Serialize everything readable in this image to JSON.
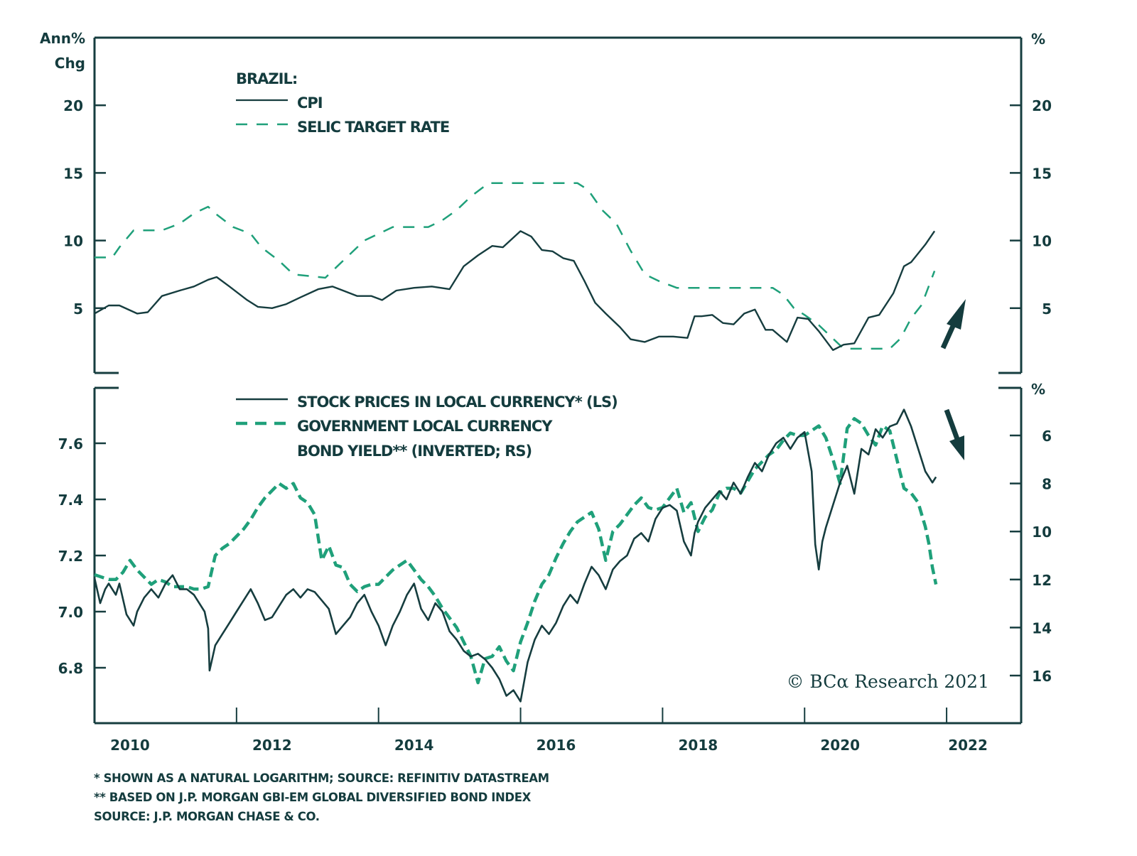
{
  "chart_data": [
    {
      "type": "line",
      "panel": "top",
      "title": "BRAZIL:",
      "ylabel_left": "Ann% Chg",
      "ylabel_right": "%",
      "ylim": [
        0,
        25
      ],
      "yticks": [
        5,
        10,
        15,
        20
      ],
      "ytick_labels_left": [
        "5",
        "10",
        "15",
        "20"
      ],
      "ytick_labels_right": [
        "5",
        "10",
        "15",
        "20"
      ],
      "legend_position": "top-left",
      "annotation": "up-arrow",
      "series": [
        {
          "name": "CPI",
          "style": "solid",
          "color": "#163d3f",
          "x": [
            2010.0,
            2010.2,
            2010.35,
            2010.6,
            2010.75,
            2010.95,
            2011.2,
            2011.4,
            2011.6,
            2011.72,
            2011.9,
            2012.15,
            2012.3,
            2012.5,
            2012.7,
            2012.9,
            2013.15,
            2013.35,
            2013.5,
            2013.7,
            2013.9,
            2014.05,
            2014.25,
            2014.5,
            2014.75,
            2015.0,
            2015.2,
            2015.4,
            2015.6,
            2015.75,
            2016.0,
            2016.15,
            2016.3,
            2016.45,
            2016.6,
            2016.75,
            2016.9,
            2017.05,
            2017.2,
            2017.4,
            2017.55,
            2017.75,
            2017.95,
            2018.15,
            2018.35,
            2018.45,
            2018.55,
            2018.7,
            2018.85,
            2019.0,
            2019.15,
            2019.3,
            2019.45,
            2019.55,
            2019.75,
            2019.9,
            2020.05,
            2020.2,
            2020.4,
            2020.55,
            2020.7,
            2020.9,
            2021.05,
            2021.25,
            2021.4,
            2021.5,
            2021.7,
            2021.83
          ],
          "values": [
            4.6,
            5.2,
            5.2,
            4.6,
            4.7,
            5.9,
            6.3,
            6.6,
            7.1,
            7.3,
            6.6,
            5.6,
            5.1,
            5.0,
            5.3,
            5.8,
            6.4,
            6.6,
            6.3,
            5.9,
            5.9,
            5.6,
            6.3,
            6.5,
            6.6,
            6.4,
            8.1,
            8.9,
            9.6,
            9.5,
            10.7,
            10.3,
            9.3,
            9.2,
            8.7,
            8.5,
            7.0,
            5.4,
            4.6,
            3.6,
            2.7,
            2.5,
            2.9,
            2.9,
            2.8,
            4.4,
            4.4,
            4.5,
            3.9,
            3.8,
            4.6,
            4.9,
            3.4,
            3.4,
            2.5,
            4.3,
            4.2,
            3.3,
            1.9,
            2.3,
            2.4,
            4.3,
            4.5,
            6.1,
            8.1,
            8.4,
            9.7,
            10.7
          ]
        },
        {
          "name": "SELIC TARGET RATE",
          "style": "dashed",
          "color": "#1fa07a",
          "x": [
            2010.0,
            2010.25,
            2010.35,
            2010.55,
            2010.95,
            2011.2,
            2011.4,
            2011.6,
            2011.7,
            2011.95,
            2012.2,
            2012.35,
            2012.6,
            2012.8,
            2013.25,
            2013.4,
            2013.6,
            2013.8,
            2014.0,
            2014.2,
            2014.7,
            2014.9,
            2015.1,
            2015.3,
            2015.55,
            2016.8,
            2016.95,
            2017.15,
            2017.35,
            2017.55,
            2017.75,
            2017.95,
            2018.2,
            2019.55,
            2019.7,
            2019.85,
            2020.0,
            2020.2,
            2020.35,
            2020.55,
            2021.2,
            2021.35,
            2021.5,
            2021.65,
            2021.83
          ],
          "values": [
            8.75,
            8.75,
            9.5,
            10.75,
            10.75,
            11.25,
            12.0,
            12.5,
            12.0,
            11.0,
            10.5,
            9.5,
            8.5,
            7.5,
            7.25,
            8.0,
            9.0,
            10.0,
            10.5,
            11.0,
            11.0,
            11.5,
            12.25,
            13.25,
            14.25,
            14.25,
            13.75,
            12.25,
            11.25,
            9.25,
            7.5,
            7.0,
            6.5,
            6.5,
            6.0,
            5.0,
            4.5,
            3.75,
            3.0,
            2.0,
            2.0,
            2.75,
            4.25,
            5.25,
            7.75
          ]
        }
      ]
    },
    {
      "type": "line",
      "panel": "bottom",
      "ylabel_left": "",
      "ylabel_right": "%",
      "ylim_left": [
        6.62,
        7.82
      ],
      "yticks_left": [
        6.8,
        7.0,
        7.2,
        7.4,
        7.6
      ],
      "ytick_labels_left": [
        "6.8",
        "7.0",
        "7.2",
        "7.4",
        "7.6"
      ],
      "ylim_right_inverted": [
        4.0,
        18.0
      ],
      "yticks_right": [
        6,
        8,
        10,
        12,
        14,
        16
      ],
      "ytick_labels_right": [
        "6",
        "8",
        "10",
        "12",
        "14",
        "16"
      ],
      "legend_position": "top-left",
      "annotation": "down-arrow",
      "series": [
        {
          "name": "STOCK PRICES IN LOCAL CURRENCY* (LS)",
          "axis": "left",
          "style": "solid",
          "color": "#163d3f",
          "x": [
            2010.0,
            2010.08,
            2010.15,
            2010.2,
            2010.3,
            2010.35,
            2010.45,
            2010.55,
            2010.6,
            2010.7,
            2010.8,
            2010.9,
            2011.0,
            2011.1,
            2011.2,
            2011.3,
            2011.4,
            2011.5,
            2011.55,
            2011.6,
            2011.62,
            2011.7,
            2011.8,
            2011.9,
            2012.0,
            2012.1,
            2012.2,
            2012.3,
            2012.4,
            2012.5,
            2012.6,
            2012.7,
            2012.8,
            2012.9,
            2013.0,
            2013.1,
            2013.2,
            2013.3,
            2013.4,
            2013.5,
            2013.6,
            2013.7,
            2013.8,
            2013.9,
            2014.0,
            2014.1,
            2014.2,
            2014.3,
            2014.4,
            2014.5,
            2014.6,
            2014.7,
            2014.8,
            2014.9,
            2015.0,
            2015.1,
            2015.2,
            2015.3,
            2015.4,
            2015.5,
            2015.6,
            2015.7,
            2015.8,
            2015.9,
            2016.0,
            2016.05,
            2016.1,
            2016.2,
            2016.3,
            2016.4,
            2016.5,
            2016.6,
            2016.7,
            2016.8,
            2016.9,
            2017.0,
            2017.1,
            2017.2,
            2017.3,
            2017.4,
            2017.5,
            2017.6,
            2017.7,
            2017.8,
            2017.9,
            2018.0,
            2018.1,
            2018.2,
            2018.3,
            2018.4,
            2018.45,
            2018.5,
            2018.6,
            2018.7,
            2018.8,
            2018.9,
            2019.0,
            2019.1,
            2019.2,
            2019.3,
            2019.4,
            2019.5,
            2019.6,
            2019.7,
            2019.8,
            2019.9,
            2020.0,
            2020.1,
            2020.15,
            2020.2,
            2020.25,
            2020.3,
            2020.4,
            2020.5,
            2020.6,
            2020.7,
            2020.8,
            2020.9,
            2021.0,
            2021.1,
            2021.2,
            2021.3,
            2021.4,
            2021.5,
            2021.6,
            2021.7,
            2021.8,
            2021.85
          ],
          "values": [
            7.12,
            7.03,
            7.08,
            7.1,
            7.06,
            7.1,
            6.99,
            6.95,
            7.0,
            7.05,
            7.08,
            7.05,
            7.1,
            7.13,
            7.08,
            7.08,
            7.06,
            7.02,
            7.0,
            6.94,
            6.79,
            6.88,
            6.92,
            6.96,
            7.0,
            7.04,
            7.08,
            7.03,
            6.97,
            6.98,
            7.02,
            7.06,
            7.08,
            7.05,
            7.08,
            7.07,
            7.04,
            7.01,
            6.92,
            6.95,
            6.98,
            7.03,
            7.06,
            7.0,
            6.95,
            6.88,
            6.95,
            7.0,
            7.06,
            7.1,
            7.01,
            6.97,
            7.03,
            7.0,
            6.93,
            6.9,
            6.86,
            6.84,
            6.85,
            6.83,
            6.8,
            6.76,
            6.7,
            6.72,
            6.68,
            6.75,
            6.82,
            6.9,
            6.95,
            6.92,
            6.96,
            7.02,
            7.06,
            7.03,
            7.1,
            7.16,
            7.13,
            7.08,
            7.15,
            7.18,
            7.2,
            7.26,
            7.28,
            7.25,
            7.33,
            7.37,
            7.38,
            7.36,
            7.25,
            7.2,
            7.28,
            7.32,
            7.37,
            7.4,
            7.43,
            7.4,
            7.46,
            7.42,
            7.48,
            7.53,
            7.5,
            7.56,
            7.6,
            7.62,
            7.58,
            7.62,
            7.64,
            7.5,
            7.24,
            7.15,
            7.25,
            7.3,
            7.38,
            7.46,
            7.52,
            7.42,
            7.58,
            7.56,
            7.65,
            7.62,
            7.66,
            7.67,
            7.72,
            7.66,
            7.58,
            7.5,
            7.46,
            7.48
          ]
        },
        {
          "name": "GOVERNMENT LOCAL CURRENCY BOND YIELD** (INVERTED; RS)",
          "axis": "right",
          "style": "dashed",
          "color": "#1fa07a",
          "x": [
            2010.0,
            2010.1,
            2010.2,
            2010.3,
            2010.4,
            2010.5,
            2010.6,
            2010.7,
            2010.8,
            2010.9,
            2011.0,
            2011.1,
            2011.2,
            2011.3,
            2011.4,
            2011.5,
            2011.6,
            2011.7,
            2011.8,
            2011.9,
            2012.0,
            2012.1,
            2012.2,
            2012.3,
            2012.4,
            2012.5,
            2012.6,
            2012.7,
            2012.8,
            2012.9,
            2013.0,
            2013.1,
            2013.2,
            2013.3,
            2013.4,
            2013.5,
            2013.6,
            2013.7,
            2013.8,
            2013.9,
            2014.0,
            2014.1,
            2014.2,
            2014.3,
            2014.4,
            2014.5,
            2014.6,
            2014.7,
            2014.8,
            2014.9,
            2015.0,
            2015.1,
            2015.2,
            2015.3,
            2015.4,
            2015.5,
            2015.6,
            2015.7,
            2015.8,
            2015.9,
            2016.0,
            2016.1,
            2016.2,
            2016.3,
            2016.4,
            2016.5,
            2016.6,
            2016.7,
            2016.8,
            2016.9,
            2017.0,
            2017.1,
            2017.2,
            2017.3,
            2017.4,
            2017.5,
            2017.6,
            2017.7,
            2017.8,
            2017.9,
            2018.0,
            2018.1,
            2018.2,
            2018.3,
            2018.4,
            2018.5,
            2018.6,
            2018.7,
            2018.8,
            2018.9,
            2019.0,
            2019.1,
            2019.2,
            2019.3,
            2019.4,
            2019.5,
            2019.6,
            2019.7,
            2019.8,
            2019.9,
            2020.0,
            2020.1,
            2020.2,
            2020.3,
            2020.4,
            2020.5,
            2020.6,
            2020.7,
            2020.8,
            2020.9,
            2021.0,
            2021.1,
            2021.2,
            2021.3,
            2021.4,
            2021.5,
            2021.6,
            2021.7,
            2021.75,
            2021.8,
            2021.85
          ],
          "values": [
            11.8,
            11.9,
            12.0,
            12.0,
            11.7,
            11.2,
            11.6,
            11.9,
            12.2,
            12.0,
            12.1,
            12.3,
            12.3,
            12.3,
            12.4,
            12.4,
            12.3,
            11.0,
            10.7,
            10.5,
            10.2,
            9.9,
            9.5,
            9.0,
            8.6,
            8.3,
            8.0,
            8.2,
            8.0,
            8.6,
            8.8,
            9.3,
            11.2,
            10.6,
            11.4,
            11.5,
            12.2,
            12.5,
            12.3,
            12.2,
            12.2,
            11.9,
            11.6,
            11.4,
            11.2,
            11.6,
            12.0,
            12.3,
            12.7,
            13.2,
            13.6,
            14.0,
            14.6,
            15.2,
            16.3,
            15.3,
            15.2,
            14.8,
            15.4,
            15.8,
            14.6,
            13.8,
            12.9,
            12.2,
            11.8,
            11.1,
            10.5,
            10.0,
            9.6,
            9.4,
            9.2,
            9.9,
            11.2,
            10.0,
            9.7,
            9.3,
            8.9,
            8.6,
            9.0,
            9.1,
            9.0,
            8.6,
            8.2,
            9.2,
            8.8,
            10.0,
            9.4,
            9.1,
            8.4,
            8.2,
            8.2,
            8.4,
            7.9,
            7.4,
            7.1,
            6.8,
            6.6,
            6.2,
            5.9,
            6.0,
            6.0,
            5.8,
            5.6,
            6.1,
            7.0,
            8.0,
            5.7,
            5.3,
            5.5,
            6.0,
            6.4,
            5.6,
            5.8,
            7.0,
            8.2,
            8.4,
            8.8,
            9.8,
            10.5,
            11.5,
            12.2
          ]
        }
      ]
    }
  ],
  "x_axis": {
    "xlim": [
      2010.0,
      2023.05
    ],
    "tick_positions": [
      2012,
      2014,
      2016,
      2018,
      2020,
      2022
    ],
    "labels": [
      {
        "year": 2010.5,
        "text": "2010"
      },
      {
        "year": 2012.5,
        "text": "2012"
      },
      {
        "year": 2014.5,
        "text": "2014"
      },
      {
        "year": 2016.5,
        "text": "2016"
      },
      {
        "year": 2018.5,
        "text": "2018"
      },
      {
        "year": 2020.5,
        "text": "2020"
      },
      {
        "year": 2022.3,
        "text": "2022"
      }
    ]
  },
  "labels": {
    "top_left_unit_line1": "Ann%",
    "top_left_unit_line2": "Chg",
    "top_right_unit": "%",
    "bottom_right_unit": "%",
    "top_legend_title": "BRAZIL:",
    "top_legend_cpi": "CPI",
    "top_legend_selic": "SELIC TARGET RATE",
    "bottom_legend_stock": "STOCK PRICES IN LOCAL CURRENCY* (LS)",
    "bottom_legend_bond_line1": "GOVERNMENT LOCAL CURRENCY",
    "bottom_legend_bond_line2": "BOND YIELD** (INVERTED; RS)",
    "copyright": "© BCα Research 2021"
  },
  "footnotes": [
    "*  SHOWN AS A NATURAL LOGARITHM; SOURCE: REFINITIV DATASTREAM",
    "** BASED ON J.P. MORGAN GBI-EM GLOBAL DIVERSIFIED BOND INDEX",
    "SOURCE: J.P. MORGAN CHASE & CO."
  ],
  "colors": {
    "axis": "#163d3f",
    "dark_series": "#163d3f",
    "green_series": "#1fa07a",
    "text": "#143c3e"
  }
}
